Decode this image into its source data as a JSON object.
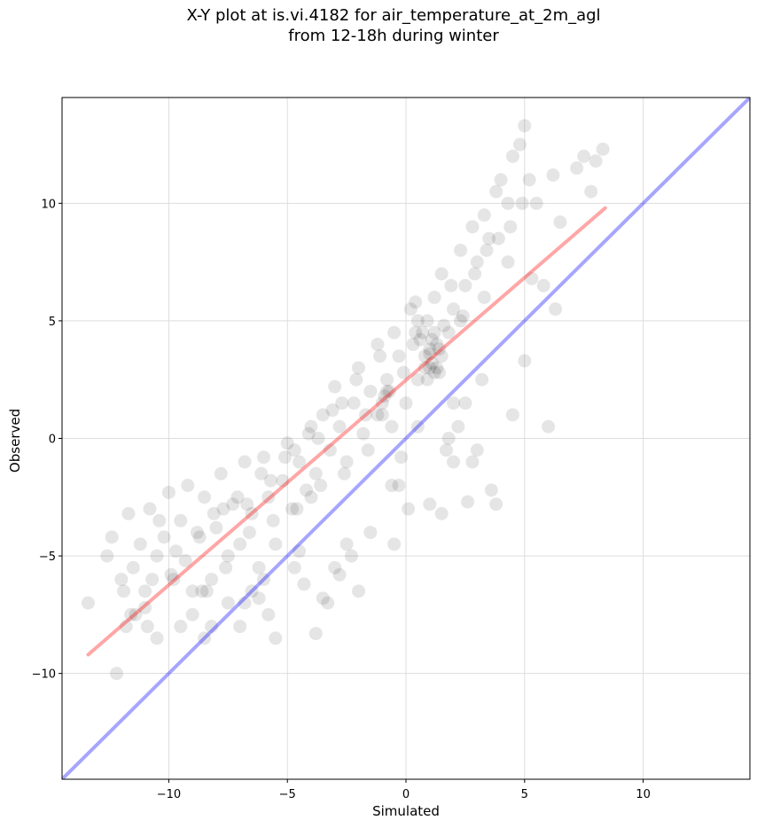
{
  "chart_data": {
    "type": "scatter",
    "title": [
      "X-Y plot at is.vi.4182 for air_temperature_at_2m_agl",
      "from 12-18h during winter"
    ],
    "xlabel": "Simulated",
    "ylabel": "Observed",
    "xlim": [
      -14.5,
      14.5
    ],
    "ylim": [
      -14.5,
      14.5
    ],
    "grid": true,
    "x_ticks": [
      -10,
      -5,
      0,
      5,
      10
    ],
    "y_ticks": [
      -10,
      -5,
      0,
      5,
      10
    ],
    "x_tick_labels": [
      "−10",
      "−5",
      "0",
      "5",
      "10"
    ],
    "y_tick_labels": [
      "−10",
      "−5",
      "0",
      "5",
      "10"
    ],
    "marker_color": "#000000",
    "point_alpha": 0.1,
    "points_x": [
      -13.4,
      -12.2,
      -12.0,
      -11.8,
      -11.5,
      -11.7,
      -11.2,
      -11.0,
      -10.8,
      -10.5,
      -10.2,
      -10.0,
      -9.8,
      -9.5,
      -9.3,
      -9.0,
      -8.8,
      -8.5,
      -8.2,
      -8.0,
      -7.8,
      -7.5,
      -7.3,
      -7.0,
      -6.8,
      -6.5,
      -6.2,
      -6.0,
      -5.8,
      -5.5,
      -5.2,
      -5.0,
      -4.8,
      -4.5,
      -4.2,
      -4.0,
      -3.8,
      -3.5,
      -3.2,
      -3.0,
      -2.8,
      -2.5,
      -2.2,
      -2.0,
      -1.8,
      -1.5,
      -1.2,
      -1.0,
      -0.8,
      -0.5,
      -0.3,
      0.0,
      0.2,
      0.5,
      0.7,
      1.0,
      1.2,
      1.5,
      1.8,
      2.0,
      2.3,
      2.5,
      2.8,
      3.0,
      3.3,
      3.5,
      3.8,
      4.0,
      4.3,
      4.5,
      4.8,
      5.0,
      5.2,
      5.5,
      6.2,
      6.5,
      7.2,
      7.5,
      7.8,
      8.0,
      8.3,
      -12.6,
      -12.4,
      -11.4,
      -11.9,
      -10.9,
      -10.4,
      -9.9,
      -9.2,
      -8.6,
      -8.1,
      -7.6,
      -7.1,
      -6.6,
      -6.1,
      -5.6,
      -5.1,
      -4.6,
      -4.1,
      -3.6,
      -3.1,
      -2.6,
      -2.1,
      -1.6,
      -1.1,
      -0.6,
      -0.1,
      0.4,
      0.9,
      1.4,
      1.9,
      2.4,
      2.9,
      3.4,
      3.9,
      4.4,
      4.9,
      -11.6,
      -10.7,
      -9.7,
      -8.7,
      -7.7,
      -6.7,
      -5.7,
      -4.7,
      -3.7,
      -2.7,
      -1.7,
      -0.7,
      0.3,
      1.3,
      2.3,
      3.3,
      4.3,
      5.3,
      6.3,
      0.8,
      1.0,
      1.1,
      1.2,
      1.3,
      0.9,
      1.1,
      1.0,
      1.2,
      0.8,
      -1.0,
      -0.8,
      -1.2,
      -0.9,
      0.5,
      0.6,
      0.4,
      1.5,
      1.6,
      1.4,
      -6.0,
      -5.8,
      -6.2,
      -7.0,
      -6.8,
      -8.2,
      -8.4,
      -3.5,
      -3.3,
      -3.8,
      2.0,
      2.2,
      1.8,
      3.0,
      3.2,
      2.8,
      -0.3,
      -0.5,
      0.1,
      -4.5,
      -4.3,
      -4.7,
      -9.0,
      -9.5,
      -10.5,
      -11.0,
      -2.5,
      -2.3,
      -2.8,
      0.5,
      1.0,
      1.5,
      2.0,
      2.5,
      -3.0,
      -2.0,
      -1.5,
      -4.0,
      -6.5,
      -7.5,
      -5.5,
      -8.5,
      3.8,
      4.5,
      5.0,
      5.8,
      6.0,
      -0.6,
      -0.2,
      1.7,
      2.6,
      3.6
    ],
    "points_y": [
      -7.0,
      -10.0,
      -6.0,
      -8.0,
      -5.5,
      -3.2,
      -4.5,
      -6.5,
      -3.0,
      -5.0,
      -4.2,
      -2.3,
      -6.0,
      -3.5,
      -5.2,
      -7.5,
      -4.0,
      -2.5,
      -6.0,
      -3.8,
      -1.5,
      -5.0,
      -2.8,
      -4.5,
      -1.0,
      -3.2,
      -5.5,
      -0.8,
      -2.5,
      -4.5,
      -1.8,
      -0.2,
      -3.0,
      -1.0,
      -2.2,
      0.5,
      -1.5,
      1.0,
      -0.5,
      2.2,
      0.5,
      -1.0,
      1.5,
      3.0,
      0.2,
      2.0,
      4.0,
      1.0,
      2.5,
      4.5,
      3.5,
      1.5,
      5.5,
      2.5,
      4.5,
      3.0,
      6.0,
      7.0,
      4.5,
      5.5,
      8.0,
      6.5,
      9.0,
      7.5,
      9.5,
      8.5,
      10.5,
      11.0,
      10.0,
      12.0,
      12.5,
      13.3,
      11.0,
      10.0,
      11.2,
      9.2,
      11.5,
      12.0,
      10.5,
      11.8,
      12.3,
      -5.0,
      -4.2,
      -7.5,
      -6.5,
      -8.0,
      -3.5,
      -5.8,
      -2.0,
      -6.5,
      -3.2,
      -5.5,
      -2.5,
      -4.0,
      -1.5,
      -3.5,
      -0.8,
      -3.0,
      0.2,
      -2.0,
      1.2,
      -1.5,
      2.5,
      -0.5,
      3.5,
      0.5,
      2.8,
      4.5,
      5.0,
      3.8,
      6.5,
      5.2,
      7.0,
      8.0,
      8.5,
      9.0,
      10.0,
      -7.5,
      -6.0,
      -4.8,
      -4.2,
      -3.0,
      -2.8,
      -1.8,
      -0.5,
      0.0,
      1.5,
      1.0,
      2.0,
      4.0,
      3.0,
      5.0,
      6.0,
      7.5,
      6.8,
      5.5,
      3.0,
      3.8,
      4.2,
      4.5,
      4.0,
      2.5,
      3.2,
      3.6,
      2.8,
      3.5,
      1.5,
      2.0,
      1.0,
      1.8,
      5.0,
      4.2,
      5.8,
      3.5,
      4.8,
      2.8,
      -6.0,
      -7.5,
      -6.8,
      -8.0,
      -7.0,
      -8.0,
      -6.5,
      -6.8,
      -7.0,
      -8.3,
      1.5,
      0.5,
      0.0,
      -0.5,
      2.5,
      -1.0,
      -2.0,
      -4.5,
      -3.0,
      -4.8,
      -6.2,
      -5.5,
      -6.5,
      -8.0,
      -8.5,
      -7.2,
      -4.5,
      -5.0,
      -5.8,
      0.5,
      -2.8,
      -3.2,
      -1.0,
      1.5,
      -5.5,
      -6.5,
      -4.0,
      -2.5,
      -6.5,
      -7.0,
      -8.5,
      -8.5,
      -2.8,
      1.0,
      3.3,
      6.5,
      0.5,
      -2.0,
      -0.8,
      -0.5,
      -2.7,
      -2.2
    ],
    "series": [
      {
        "name": "",
        "kind": "fit_line",
        "color": "#ff0000",
        "alpha": 0.35,
        "x": [
          -13.4,
          8.4
        ],
        "y": [
          -9.2,
          9.8
        ]
      },
      {
        "name": "",
        "kind": "one_to_one_line",
        "color": "#0000ff",
        "alpha": 0.35,
        "x": [
          -14.5,
          14.5
        ],
        "y": [
          -14.5,
          14.5
        ]
      }
    ]
  }
}
